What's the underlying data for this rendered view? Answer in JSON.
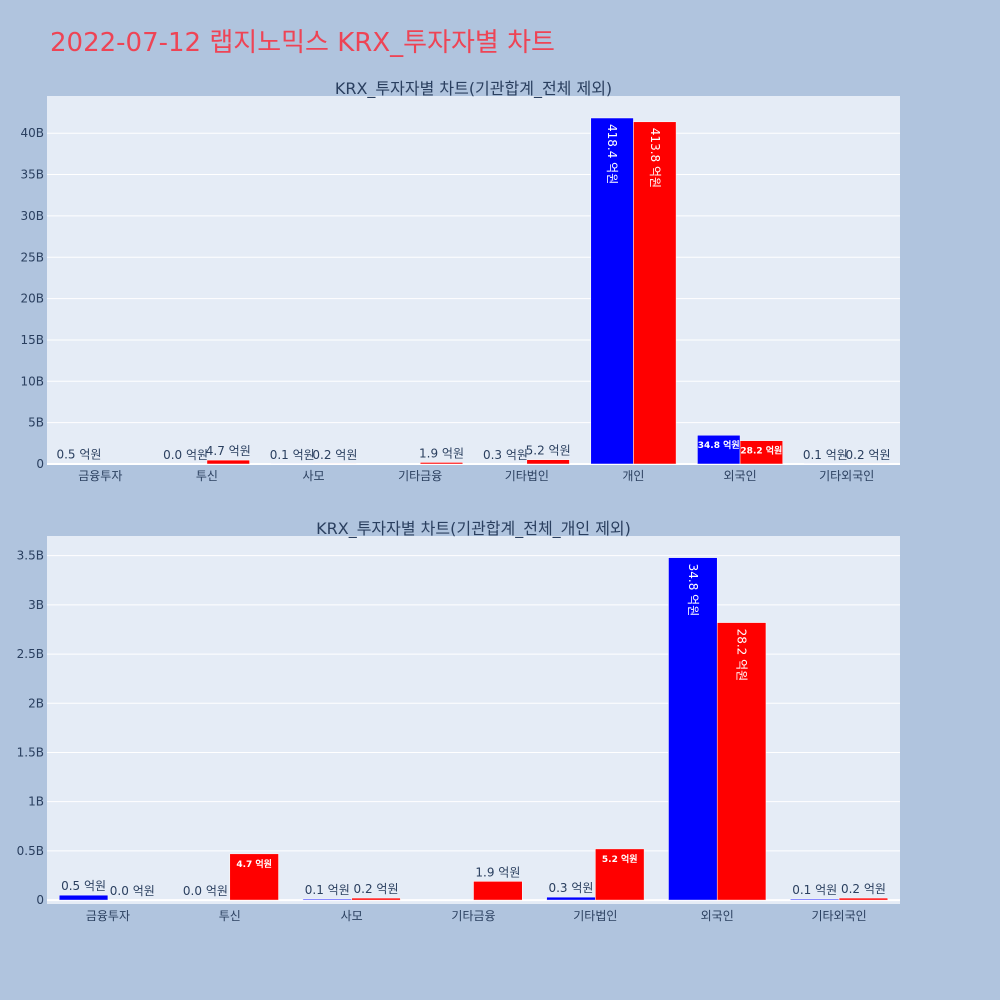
{
  "page_title": "2022-07-12 랩지노믹스 KRX_투자자별 차트",
  "colors": {
    "buy": "#0000ff",
    "sell": "#ff0000",
    "plot_bg": "#e5ecf6",
    "page_bg": "#b0c4de"
  },
  "chart_data": [
    {
      "type": "bar",
      "title": "KRX_투자자별 차트(기관합계_전체 제외)",
      "categories": [
        "금융투자",
        "투신",
        "사모",
        "기타금융",
        "기타법인",
        "개인",
        "외국인",
        "기타외국인"
      ],
      "series": [
        {
          "values": [
            0.05,
            0.0,
            0.01,
            0.0,
            0.03,
            41.84,
            3.48,
            0.01
          ],
          "labels": [
            "0.5 억원",
            "0.0 억원",
            "0.1 억원",
            "",
            "0.3 억원",
            "418.4 억원",
            "34.8 억원",
            "0.1 억원"
          ]
        },
        {
          "values": [
            0.0,
            0.47,
            0.02,
            0.19,
            0.52,
            41.38,
            2.82,
            0.02
          ],
          "labels": [
            "",
            "4.7 억원",
            "0.2 억원",
            "1.9 억원",
            "5.2 억원",
            "413.8 억원",
            "28.2 억원",
            "0.2 억원"
          ]
        }
      ],
      "ylim": [
        0,
        44.5
      ],
      "yticks": [
        0,
        5,
        10,
        15,
        20,
        25,
        30,
        35,
        40
      ],
      "ytick_labels": [
        "0",
        "5B",
        "10B",
        "15B",
        "20B",
        "25B",
        "30B",
        "35B",
        "40B"
      ],
      "grid": true
    },
    {
      "type": "bar",
      "title": "KRX_투자자별 차트(기관합계_전체_개인 제외)",
      "categories": [
        "금융투자",
        "투신",
        "사모",
        "기타금융",
        "기타법인",
        "외국인",
        "기타외국인"
      ],
      "series": [
        {
          "values": [
            0.05,
            0.0,
            0.01,
            0.0,
            0.03,
            3.48,
            0.01
          ],
          "labels": [
            "0.5 억원",
            "0.0 억원",
            "0.1 억원",
            "",
            "0.3 억원",
            "34.8 억원",
            "0.1 억원"
          ]
        },
        {
          "values": [
            0.0,
            0.47,
            0.02,
            0.19,
            0.52,
            2.82,
            0.02
          ],
          "labels": [
            "0.0 억원",
            "4.7 억원",
            "0.2 억원",
            "1.9 억원",
            "5.2 억원",
            "28.2 억원",
            "0.2 억원"
          ]
        }
      ],
      "ylim": [
        -0.04,
        3.7
      ],
      "yticks": [
        0,
        0.5,
        1,
        1.5,
        2,
        2.5,
        3,
        3.5
      ],
      "ytick_labels": [
        "0",
        "0.5B",
        "1B",
        "1.5B",
        "2B",
        "2.5B",
        "3B",
        "3.5B"
      ],
      "grid": true
    }
  ]
}
